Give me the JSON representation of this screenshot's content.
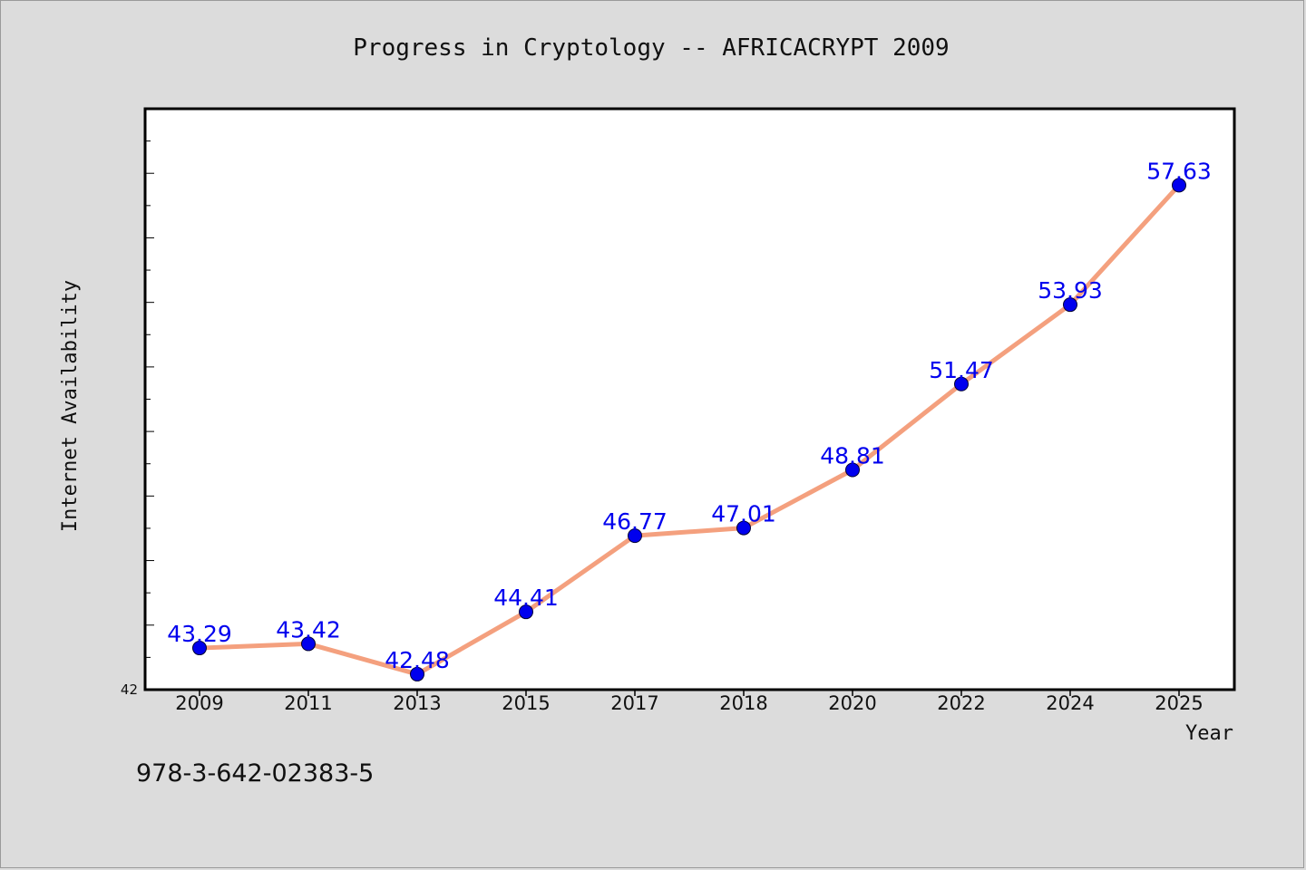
{
  "chart_data": {
    "type": "line",
    "title": "Progress in Cryptology -- AFRICACRYPT 2009",
    "xlabel": "Year",
    "ylabel": "Internet Availability",
    "categories": [
      "2009",
      "2011",
      "2013",
      "2015",
      "2017",
      "2018",
      "2020",
      "2022",
      "2024",
      "2025"
    ],
    "series": [
      {
        "values": [
          43.29,
          43.42,
          42.48,
          44.41,
          46.77,
          47.01,
          48.81,
          51.47,
          53.93,
          57.63
        ]
      }
    ],
    "data_labels": [
      "43.29",
      "43.42",
      "42.48",
      "44.41",
      "46.77",
      "47.01",
      "48.81",
      "51.47",
      "53.93",
      "57.63"
    ],
    "ylim": [
      42,
      60
    ],
    "y_tick_labels": [
      "42"
    ],
    "grid": false,
    "colors": {
      "line": "#f4a07e",
      "marker": "#0000ee",
      "label": "#0000ee",
      "plot_background": "#ffffff",
      "page_background": "#dcdcdc"
    }
  },
  "footer": {
    "isbn": "978-3-642-02383-5"
  }
}
